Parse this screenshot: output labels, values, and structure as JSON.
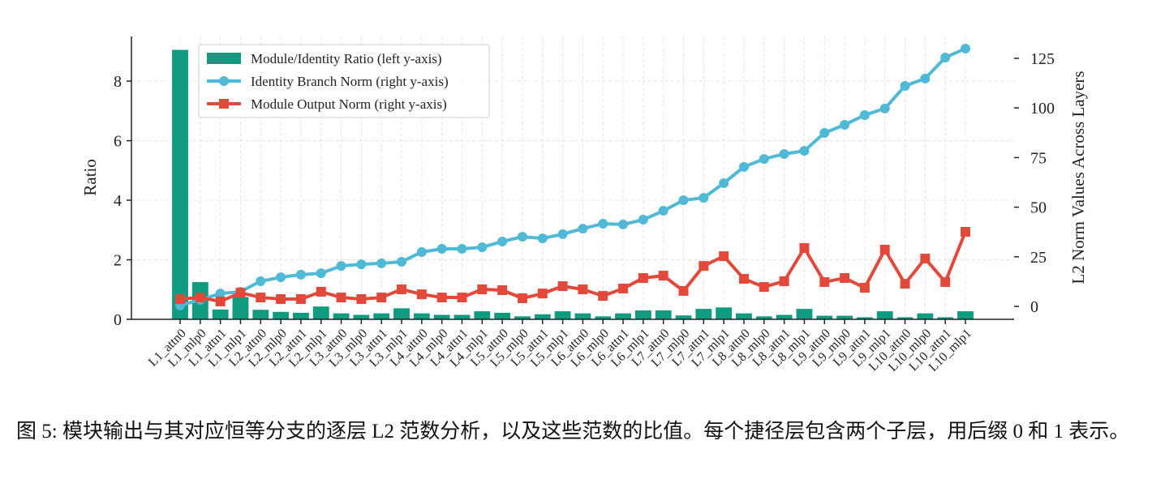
{
  "chart_data": {
    "type": "bar",
    "y_label": "Ratio",
    "y2_label": "L2 Norm Values Across Layers",
    "categories": [
      "L1_attn0",
      "L1_mlp0",
      "L1_attn1",
      "L1_mlp1",
      "L2_attn0",
      "L2_mlp0",
      "L2_attn1",
      "L2_mlp1",
      "L3_attn0",
      "L3_mlp0",
      "L3_attn1",
      "L3_mlp1",
      "L4_attn0",
      "L4_mlp0",
      "L4_attn1",
      "L4_mlp1",
      "L5_attn0",
      "L5_mlp0",
      "L5_attn1",
      "L5_mlp1",
      "L6_attn0",
      "L6_mlp0",
      "L6_attn1",
      "L6_mlp1",
      "L7_attn0",
      "L7_mlp0",
      "L7_attn1",
      "L7_mlp1",
      "L8_attn0",
      "L8_mlp0",
      "L8_attn1",
      "L8_mlp1",
      "L9_attn0",
      "L9_mlp0",
      "L9_attn1",
      "L9_mlp1",
      "L10_attn0",
      "L10_mlp0",
      "L10_attn1",
      "L10_mlp1"
    ],
    "series": [
      {
        "name": "Module/Identity Ratio (left y-axis)",
        "type": "bar",
        "color": "#0e9b7f",
        "values": [
          9.05,
          1.25,
          0.33,
          0.75,
          0.32,
          0.25,
          0.22,
          0.43,
          0.2,
          0.15,
          0.2,
          0.37,
          0.2,
          0.15,
          0.15,
          0.27,
          0.22,
          0.1,
          0.17,
          0.27,
          0.2,
          0.1,
          0.2,
          0.3,
          0.3,
          0.13,
          0.35,
          0.4,
          0.2,
          0.1,
          0.15,
          0.35,
          0.12,
          0.12,
          0.07,
          0.27,
          0.07,
          0.2,
          0.07,
          0.27
        ]
      },
      {
        "name": "Identity Branch Norm (right y-axis)",
        "type": "line",
        "axis": "y2",
        "marker": "circle",
        "color": "#4fb9d6",
        "values": [
          0.5,
          3.3,
          6.5,
          7.4,
          12.7,
          14.7,
          16,
          16.7,
          20.4,
          21.2,
          21.7,
          22.5,
          27.4,
          29,
          29,
          29.8,
          32.7,
          35.1,
          34.3,
          36.4,
          39.2,
          41.7,
          41.3,
          43.7,
          48.2,
          53.5,
          54.7,
          62.1,
          70.3,
          74.3,
          76.8,
          78.4,
          87.4,
          91.5,
          96.4,
          99.7,
          111.1,
          114.8,
          125.4,
          129.9
        ]
      },
      {
        "name": "Module Output Norm (right y-axis)",
        "type": "line",
        "axis": "y2",
        "marker": "square",
        "color": "#e2493a",
        "values": [
          3.7,
          4.5,
          2.5,
          6.9,
          4.5,
          3.7,
          3.7,
          7.4,
          4.5,
          3.7,
          4.5,
          8.6,
          6.1,
          4.5,
          4.5,
          8.6,
          8.2,
          4.1,
          6.5,
          10.2,
          8.6,
          5.3,
          9,
          14.3,
          15.5,
          7.8,
          20.4,
          25.3,
          13.9,
          9.8,
          12.7,
          29.4,
          12.3,
          14.3,
          9.4,
          28.6,
          11.4,
          24.1,
          12.3,
          37.6
        ]
      }
    ],
    "ylim": [
      0,
      9.5
    ],
    "yticks": [
      0,
      2,
      4,
      6,
      8
    ],
    "y2lim": [
      -6.5,
      136
    ],
    "y2ticks": [
      0,
      25,
      50,
      75,
      100,
      125
    ],
    "grid": true,
    "legend": "upper left"
  },
  "caption": "图 5: 模块输出与其对应恒等分支的逐层 L2 范数分析，以及这些范数的比值。每个捷径层包含两个子层，用后缀 0 和 1 表示。"
}
